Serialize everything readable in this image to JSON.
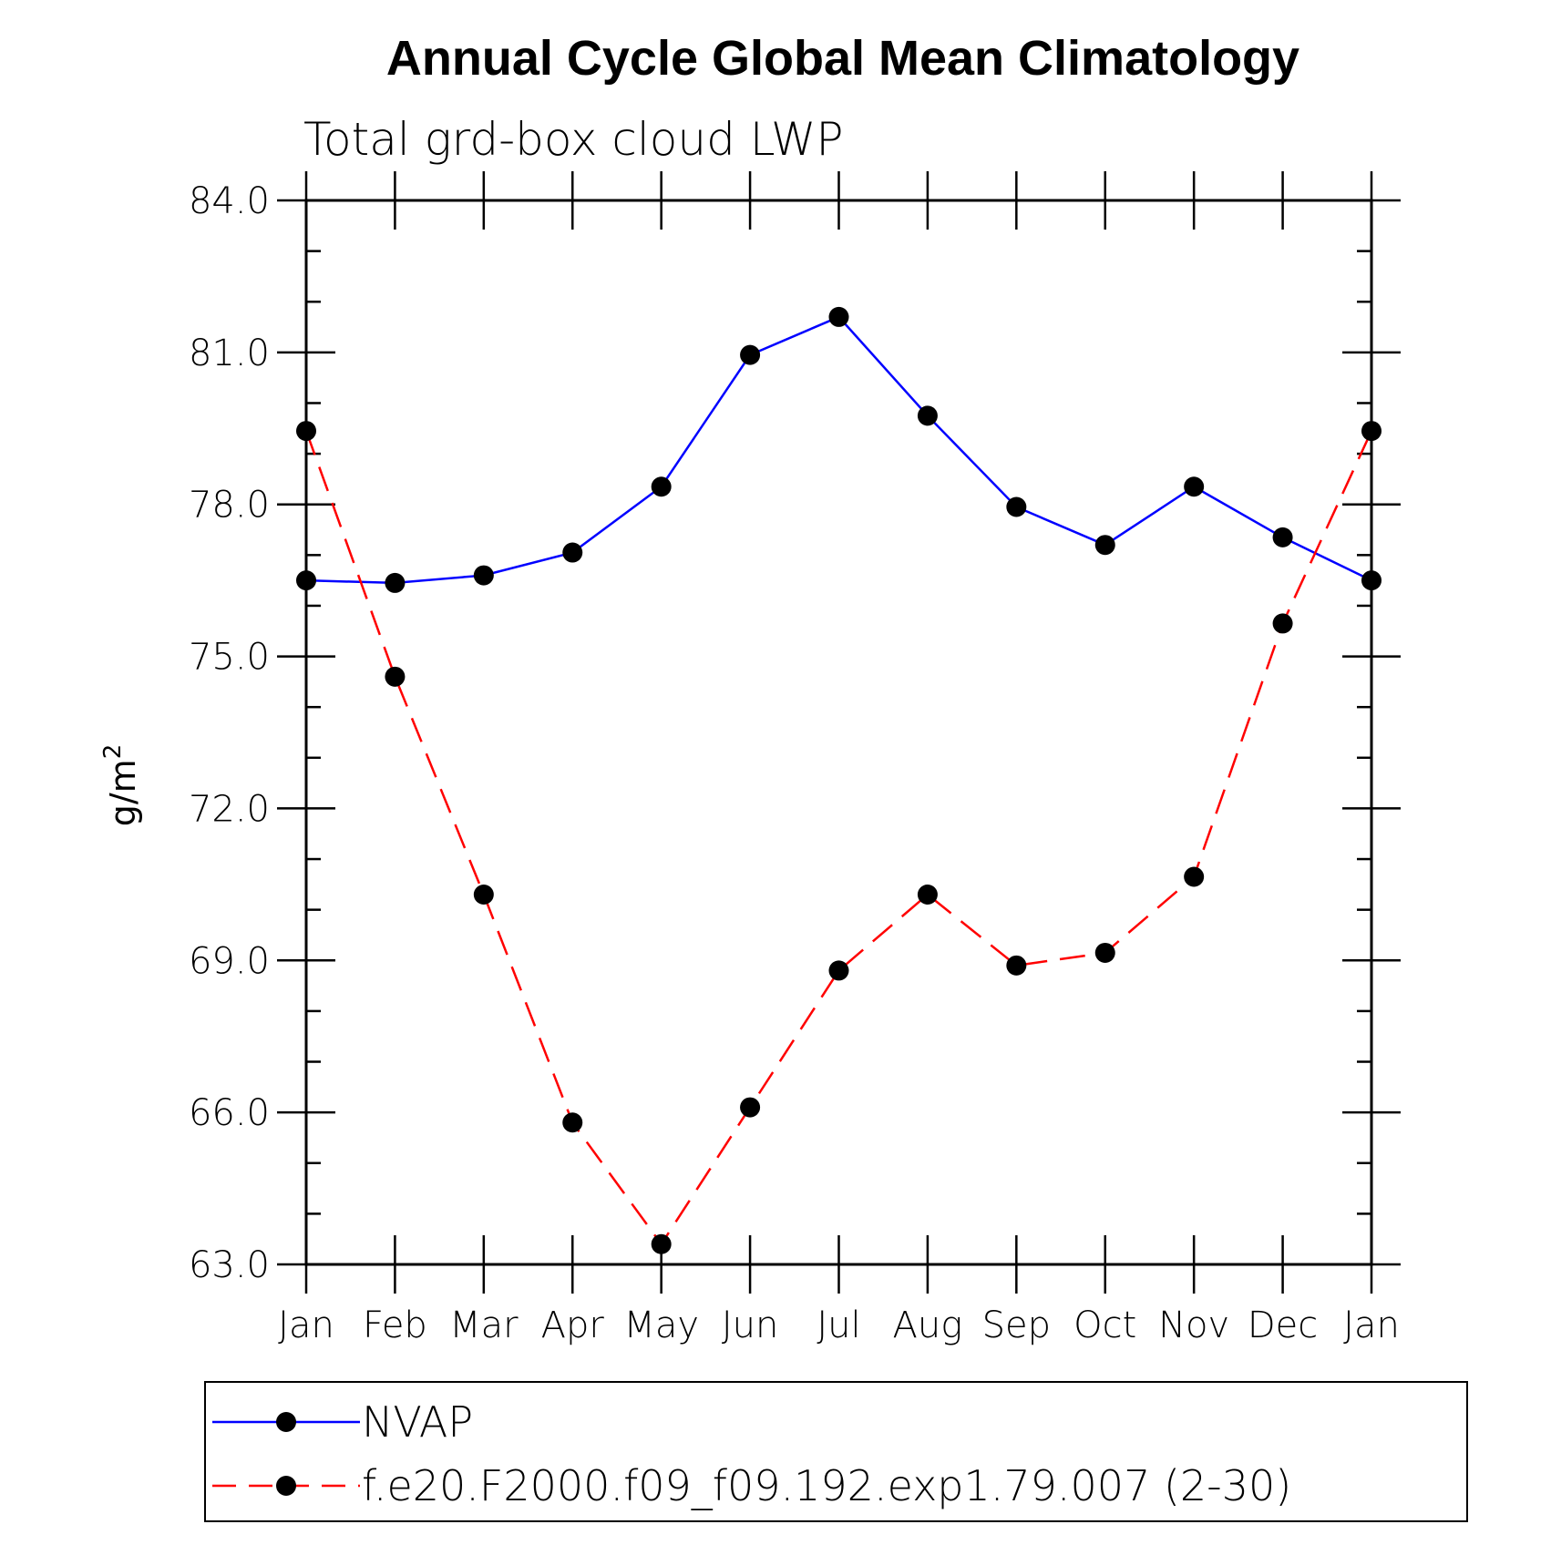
{
  "chart_data": {
    "type": "line",
    "title": "Annual Cycle Global Mean Climatology",
    "subtitle": "Total grd-box cloud LWP",
    "xlabel": "",
    "ylabel": "g/m",
    "ylabel_superscript": "2",
    "categories": [
      "Jan",
      "Feb",
      "Mar",
      "Apr",
      "May",
      "Jun",
      "Jul",
      "Aug",
      "Sep",
      "Oct",
      "Nov",
      "Dec",
      "Jan"
    ],
    "ylim": [
      63.0,
      84.0
    ],
    "yticks": [
      "84.0",
      "81.0",
      "78.0",
      "75.0",
      "72.0",
      "69.0",
      "66.0",
      "63.0"
    ],
    "ytick_values": [
      84,
      81,
      78,
      75,
      72,
      69,
      66,
      63
    ],
    "grid": false,
    "legend_placement": "bottom",
    "series": [
      {
        "name": "NVAP",
        "color": "#0000ff",
        "style": "solid",
        "marker": "filled-circle",
        "values": [
          76.5,
          76.45,
          76.6,
          77.05,
          78.35,
          80.95,
          81.7,
          79.75,
          77.95,
          77.2,
          78.35,
          77.35,
          76.5
        ]
      },
      {
        "name": "f.e20.F2000.f09_f09.192.exp1.79.007 (2-30)",
        "color": "#ff0000",
        "style": "dashed",
        "marker": "filled-circle",
        "values": [
          79.45,
          74.6,
          70.3,
          65.8,
          63.4,
          66.1,
          68.8,
          70.3,
          68.9,
          69.15,
          70.65,
          75.65,
          79.45
        ]
      }
    ]
  }
}
